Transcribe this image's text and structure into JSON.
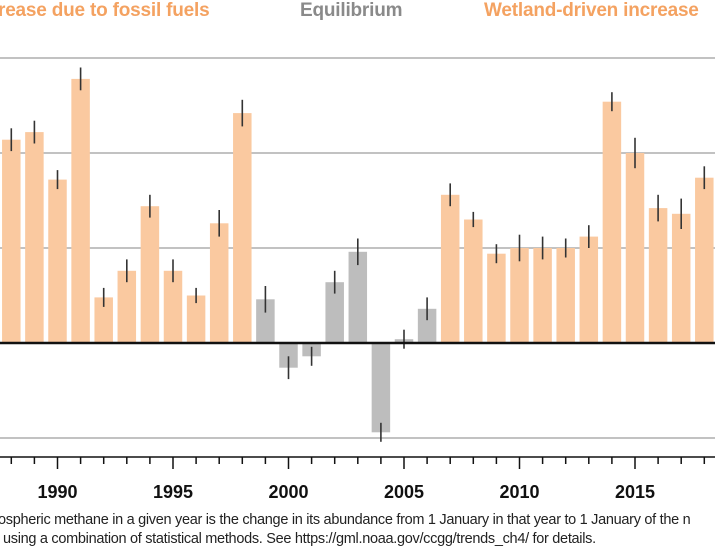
{
  "period_labels": {
    "fossil": "rease due to fossil fuels",
    "equilibrium": "Equilibrium",
    "wetland": "Wetland-driven increase"
  },
  "colors": {
    "orange_text": "#f4a261",
    "orange_bar": "#fac9a0",
    "gray_text": "#8a8a8a",
    "gray_bar": "#bdbdbd",
    "gridline": "#9e9e9e",
    "zero_line": "#111111",
    "error_bar": "#333333"
  },
  "caption": {
    "line1": "ospheric methane in a given year is the change in its abundance from 1 January in that year to 1 January of the n",
    "line2": "using a combination of statistical methods. See https://gml.noaa.gov/ccgg/trends_ch4/ for details."
  },
  "chart_data": {
    "type": "bar",
    "title": "",
    "xlabel": "",
    "ylabel": "",
    "ylim": [
      -5,
      15
    ],
    "y_gridlines": [
      -5,
      5,
      10,
      15
    ],
    "zero_line": 0,
    "grid": true,
    "x_tick_labels": [
      "1990",
      "1995",
      "2000",
      "2005",
      "2010",
      "2015"
    ],
    "x_tick_label_values": [
      1990,
      1995,
      2000,
      2005,
      2010,
      2015
    ],
    "x_minor_ticks_every": 1,
    "categories": [
      1988,
      1989,
      1990,
      1991,
      1992,
      1993,
      1994,
      1995,
      1996,
      1997,
      1998,
      1999,
      2000,
      2001,
      2002,
      2003,
      2004,
      2005,
      2006,
      2007,
      2008,
      2009,
      2010,
      2011,
      2012,
      2013,
      2014,
      2015,
      2016,
      2017,
      2018
    ],
    "values": [
      10.7,
      11.1,
      8.6,
      13.9,
      2.4,
      3.8,
      7.2,
      3.8,
      2.5,
      6.3,
      12.1,
      2.3,
      -1.3,
      -0.7,
      3.2,
      4.8,
      -4.7,
      0.2,
      1.8,
      7.8,
      6.5,
      4.7,
      5.0,
      5.0,
      5.0,
      5.6,
      12.7,
      10.0,
      7.1,
      6.8,
      8.7
    ],
    "errors": [
      0.6,
      0.6,
      0.5,
      0.6,
      0.5,
      0.6,
      0.6,
      0.6,
      0.4,
      0.7,
      0.7,
      0.7,
      0.6,
      0.5,
      0.6,
      0.7,
      0.5,
      0.5,
      0.6,
      0.6,
      0.4,
      0.5,
      0.7,
      0.6,
      0.5,
      0.6,
      0.5,
      0.8,
      0.7,
      0.8,
      0.6
    ],
    "series_groups": [
      {
        "name": "Increase due to fossil fuels",
        "years": [
          1988,
          1998
        ],
        "color": "orange"
      },
      {
        "name": "Equilibrium",
        "years": [
          1999,
          2006
        ],
        "color": "gray"
      },
      {
        "name": "Wetland-driven increase",
        "years": [
          2007,
          2018
        ],
        "color": "orange"
      }
    ],
    "legend": "top (period labels above plot)"
  }
}
